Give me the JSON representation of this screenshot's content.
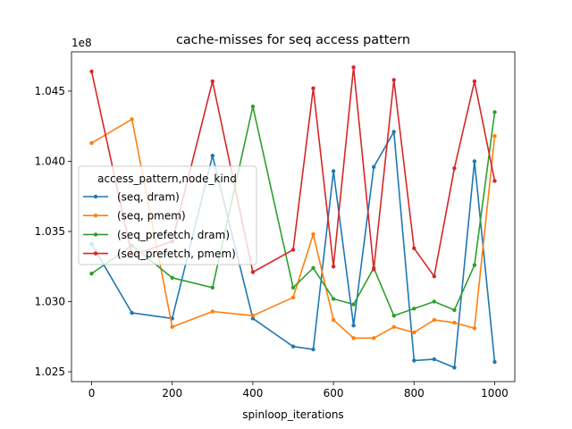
{
  "chart_data": {
    "type": "line",
    "title": "cache-misses for seq access pattern",
    "xlabel": "spinloop_iterations",
    "ylabel": "",
    "y_offset_label": "1e8",
    "xlim": [
      -50,
      1050
    ],
    "ylim": [
      1.0243,
      1.0478
    ],
    "x_ticks": [
      0,
      200,
      400,
      600,
      800,
      1000
    ],
    "x_tick_labels": [
      "0",
      "200",
      "400",
      "600",
      "800",
      "1000"
    ],
    "y_ticks": [
      1.025,
      1.03,
      1.035,
      1.04,
      1.045
    ],
    "y_tick_labels": [
      "1.025",
      "1.030",
      "1.035",
      "1.040",
      "1.045"
    ],
    "grid": false,
    "legend": {
      "title": "access_pattern,node_kind",
      "position": "center-left"
    },
    "x": [
      0,
      100,
      200,
      300,
      400,
      500,
      550,
      600,
      650,
      700,
      750,
      800,
      850,
      900,
      950,
      1000
    ],
    "series": [
      {
        "name": "(seq, dram)",
        "color": "#1f77b4",
        "values": [
          1.0341,
          1.0292,
          1.0288,
          1.0404,
          1.0288,
          1.0268,
          1.0266,
          1.0393,
          1.0283,
          1.0396,
          1.0421,
          1.0258,
          1.0259,
          1.0253,
          1.04,
          1.0257
        ]
      },
      {
        "name": "(seq, pmem)",
        "color": "#ff7f0e",
        "values": [
          1.0413,
          1.043,
          1.0282,
          1.0293,
          1.029,
          1.0303,
          1.0348,
          1.0287,
          1.0274,
          1.0274,
          1.0282,
          1.0278,
          1.0287,
          1.0285,
          1.0281,
          1.0418
        ]
      },
      {
        "name": "(seq_prefetch, dram)",
        "color": "#2ca02c",
        "values": [
          1.032,
          1.034,
          1.0317,
          1.031,
          1.0439,
          1.031,
          1.0324,
          1.0302,
          1.0298,
          1.0324,
          1.029,
          1.0295,
          1.03,
          1.0294,
          1.0326,
          1.0435
        ]
      },
      {
        "name": "(seq_prefetch, pmem)",
        "color": "#d62728",
        "values": [
          1.0464,
          1.0333,
          1.0343,
          1.0457,
          1.0321,
          1.0337,
          1.0452,
          1.0325,
          1.0467,
          1.0323,
          1.0458,
          1.0338,
          1.0318,
          1.0395,
          1.0457,
          1.0386
        ]
      }
    ]
  }
}
